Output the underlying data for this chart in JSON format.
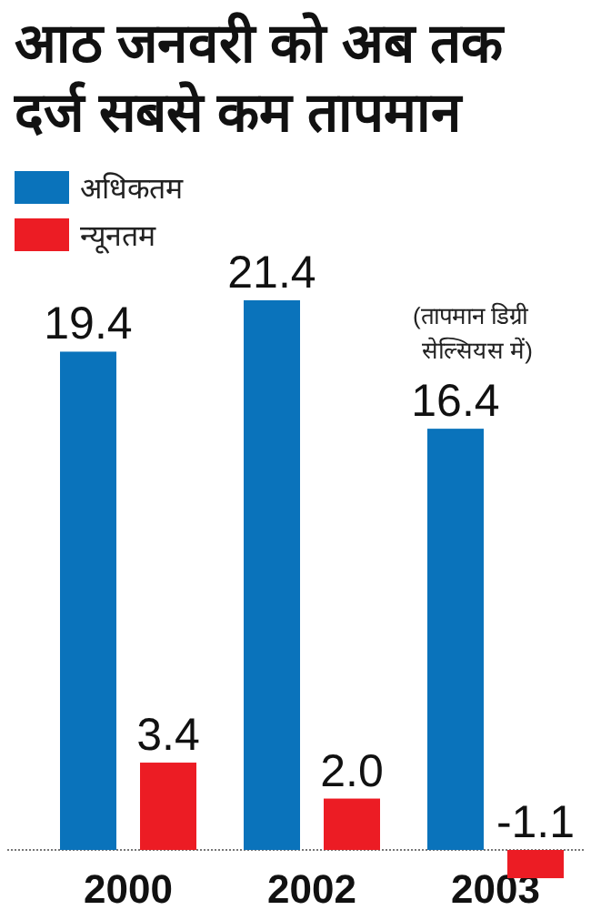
{
  "chart_data": {
    "type": "bar",
    "title": "आठ जनवरी को अब तक दर्ज सबसे कम तापमान",
    "categories": [
      "2000",
      "2002",
      "2003"
    ],
    "series": [
      {
        "name": "अधिकतम",
        "color": "#0a73bb",
        "values": [
          19.4,
          21.4,
          16.4
        ],
        "value_labels": [
          "19.4",
          "21.4",
          "16.4"
        ]
      },
      {
        "name": "न्यूनतम",
        "color": "#ec1c24",
        "values": [
          3.4,
          2.0,
          -1.1
        ],
        "value_labels": [
          "3.4",
          "2.0",
          "-1.1"
        ]
      }
    ],
    "legend": "top left",
    "ref_lines": [
      {
        "axis": "y",
        "value": 0,
        "color": "#777777",
        "line_style": "dotted"
      }
    ],
    "annotations": [
      "(तापमान डिग्री सेल्सियस में)"
    ]
  }
}
